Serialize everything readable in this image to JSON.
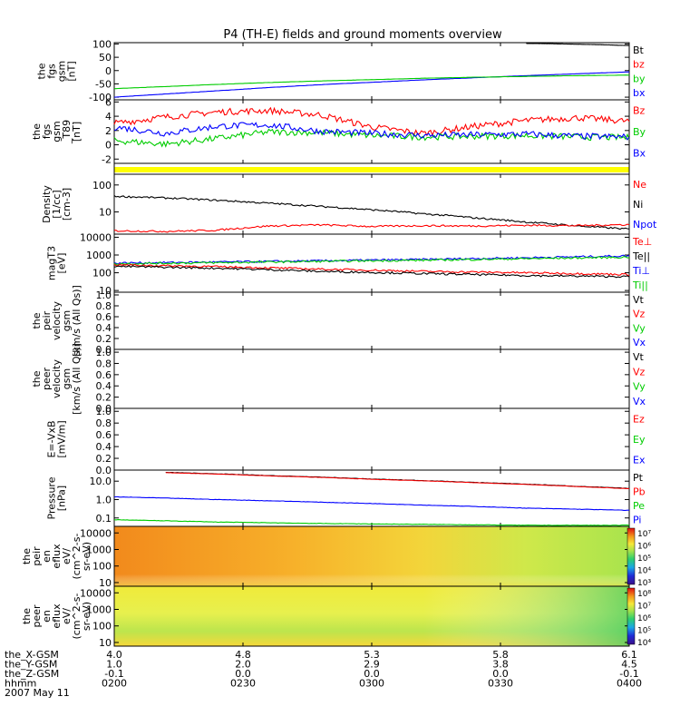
{
  "title": "P4 (TH-E) fields and ground moments overview",
  "colors": {
    "black": "#000000",
    "red": "#ff0000",
    "green": "#00cc00",
    "blue": "#0000ff",
    "yellow": "#ffff00"
  },
  "panels": [
    {
      "id": "fgs",
      "ylabel": [
        "the",
        "fgs",
        "gsm",
        "[nT]"
      ],
      "ticks": [
        "100",
        "50",
        "0",
        "-50",
        "-100"
      ],
      "legend": [
        {
          "t": "Bt",
          "c": "black"
        },
        {
          "t": "bz",
          "c": "red"
        },
        {
          "t": "by",
          "c": "green"
        },
        {
          "t": "bx",
          "c": "blue"
        }
      ]
    },
    {
      "id": "fgs2",
      "ylabel": [
        "the",
        "fgs",
        "gsm",
        "_T89",
        "[nT]"
      ],
      "ticks": [
        "6",
        "4",
        "2",
        "0",
        "-2"
      ],
      "legend": [
        {
          "t": "Bz",
          "c": "red"
        },
        {
          "t": "By",
          "c": "green"
        },
        {
          "t": "Bx",
          "c": "blue"
        }
      ]
    },
    {
      "id": "bar",
      "ylabel": [],
      "ticks": [],
      "legend": []
    },
    {
      "id": "dens",
      "ylabel": [
        "Density",
        "[1/cc]",
        "[cm-3]"
      ],
      "ticks": [
        "100",
        "10"
      ],
      "legend": [
        {
          "t": "Ne",
          "c": "red"
        },
        {
          "t": "Ni",
          "c": "black"
        },
        {
          "t": "Npot",
          "c": "blue"
        }
      ]
    },
    {
      "id": "temp",
      "ylabel": [
        "magT3",
        "[eV]"
      ],
      "ticks": [
        "10000",
        "1000",
        "100",
        "10"
      ],
      "legend": [
        {
          "t": "Te⊥",
          "c": "red"
        },
        {
          "t": "Te||",
          "c": "black"
        },
        {
          "t": "Ti⊥",
          "c": "blue"
        },
        {
          "t": "Ti||",
          "c": "green"
        }
      ]
    },
    {
      "id": "peir",
      "ylabel": [
        "the",
        "peir",
        "velocity",
        "gsm",
        "[km/s (All Qs)]"
      ],
      "ticks": [
        "1.0",
        "0.8",
        "0.6",
        "0.4",
        "0.2",
        "0.0"
      ],
      "legend": [
        {
          "t": "Vt",
          "c": "black"
        },
        {
          "t": "Vz",
          "c": "red"
        },
        {
          "t": "Vy",
          "c": "green"
        },
        {
          "t": "Vx",
          "c": "blue"
        }
      ]
    },
    {
      "id": "peer",
      "ylabel": [
        "the",
        "peer",
        "velocity",
        "gsm",
        "[km/s (All Qs)]"
      ],
      "ticks": [
        "1.0",
        "0.8",
        "0.6",
        "0.4",
        "0.2",
        "0.0"
      ],
      "legend": [
        {
          "t": "Vt",
          "c": "black"
        },
        {
          "t": "Vz",
          "c": "red"
        },
        {
          "t": "Vy",
          "c": "green"
        },
        {
          "t": "Vx",
          "c": "blue"
        }
      ]
    },
    {
      "id": "efield",
      "ylabel": [
        "E=-VxB",
        "[mV/m]"
      ],
      "ticks": [
        "1.0",
        "0.8",
        "0.6",
        "0.4",
        "0.2",
        "0.0"
      ],
      "legend": [
        {
          "t": "Ez",
          "c": "red"
        },
        {
          "t": "Ey",
          "c": "green"
        },
        {
          "t": "Ex",
          "c": "blue"
        }
      ]
    },
    {
      "id": "press",
      "ylabel": [
        "Pressure",
        "[nPa]"
      ],
      "ticks": [
        "10.0",
        "1.0",
        "0.1"
      ],
      "legend": [
        {
          "t": "Pt",
          "c": "black"
        },
        {
          "t": "Pb",
          "c": "red"
        },
        {
          "t": "Pe",
          "c": "green"
        },
        {
          "t": "Pi",
          "c": "blue"
        }
      ]
    },
    {
      "id": "ionspec",
      "ylabel": [
        "the",
        "peir",
        "en",
        "eflux",
        "eV/",
        "(cm^2-s-",
        "sr-eV)"
      ],
      "ticks": [
        "10000",
        "1000",
        "100",
        "10"
      ],
      "colorbar": [
        "10⁷",
        "10⁶",
        "10⁵",
        "10⁴",
        "10³"
      ],
      "legend": []
    },
    {
      "id": "elecspec",
      "ylabel": [
        "the",
        "peer",
        "en",
        "eflux",
        "eV/",
        "(cm^2-s-",
        "sr-eV)"
      ],
      "ticks": [
        "10000",
        "1000",
        "100",
        "10"
      ],
      "colorbar": [
        "10⁸",
        "10⁷",
        "10⁶",
        "10⁵",
        "10⁴"
      ],
      "legend": []
    }
  ],
  "footer": {
    "rows": [
      {
        "label": "the_X-GSM",
        "values": [
          "4.0",
          "4.8",
          "5.3",
          "5.8",
          "6.1"
        ]
      },
      {
        "label": "the_Y-GSM",
        "values": [
          "1.0",
          "2.0",
          "2.9",
          "3.8",
          "4.5"
        ]
      },
      {
        "label": "the_Z-GSM",
        "values": [
          "-0.1",
          "0.0",
          "0.0",
          "0.0",
          "-0.1"
        ]
      },
      {
        "label": "hhmm",
        "values": [
          "0200",
          "0230",
          "0300",
          "0330",
          "0400"
        ]
      }
    ],
    "date": "2007 May 11"
  },
  "chart_data": {
    "type": "line",
    "title": "P4 (TH-E) fields and ground moments overview",
    "x_ticks": [
      "0200",
      "0230",
      "0300",
      "0330",
      "0400"
    ],
    "series": [
      {
        "panel": "fgs",
        "name": "Bt",
        "x": [
          0.8,
          0.85,
          0.9,
          0.95,
          1.0
        ],
        "values": [
          102,
          101,
          99,
          97,
          94
        ]
      },
      {
        "panel": "fgs",
        "name": "bx",
        "x": [
          0,
          0.1,
          0.2,
          0.3,
          0.4,
          0.5,
          0.6,
          0.7,
          0.8,
          0.9,
          1.0
        ],
        "values": [
          -100,
          -88,
          -76,
          -64,
          -53,
          -44,
          -35,
          -27,
          -19,
          -12,
          -5
        ]
      },
      {
        "panel": "fgs",
        "name": "by",
        "x": [
          0,
          0.1,
          0.2,
          0.3,
          0.4,
          0.5,
          0.6,
          0.7,
          0.8,
          0.9,
          1.0
        ],
        "values": [
          -68,
          -60,
          -52,
          -45,
          -39,
          -34,
          -29,
          -25,
          -22,
          -19,
          -17
        ]
      },
      {
        "panel": "fgs2",
        "name": "Bz",
        "x": [
          0,
          0.1,
          0.2,
          0.3,
          0.4,
          0.5,
          0.6,
          0.7,
          0.8,
          0.9,
          1.0
        ],
        "values": [
          3,
          3.9,
          4.6,
          4.8,
          4.2,
          2.5,
          1.6,
          2.6,
          3.4,
          3.8,
          3.3
        ]
      },
      {
        "panel": "fgs2",
        "name": "By",
        "x": [
          0,
          0.1,
          0.2,
          0.3,
          0.4,
          0.5,
          0.6,
          0.7,
          0.8,
          0.9,
          1.0
        ],
        "values": [
          0.6,
          0.1,
          0.9,
          1.8,
          1.7,
          1.3,
          1.1,
          1.2,
          1.3,
          1.1,
          1.0
        ]
      },
      {
        "panel": "fgs2",
        "name": "Bx",
        "x": [
          0,
          0.1,
          0.2,
          0.3,
          0.4,
          0.5,
          0.6,
          0.7,
          0.8,
          0.9,
          1.0
        ],
        "values": [
          2.5,
          1.6,
          2.6,
          2.8,
          1.9,
          1.6,
          1.3,
          1.4,
          1.5,
          1.2,
          1.1
        ]
      },
      {
        "panel": "dens",
        "name": "Ni",
        "x": [
          0,
          0.1,
          0.2,
          0.3,
          0.4,
          0.5,
          0.6,
          0.7,
          0.8,
          0.9,
          1.0
        ],
        "values": [
          38,
          33,
          27,
          21,
          16,
          12,
          8.5,
          6,
          4.2,
          3,
          2.3
        ]
      },
      {
        "panel": "dens",
        "name": "Ne",
        "x": [
          0,
          0.1,
          0.2,
          0.3,
          0.4,
          0.5,
          0.6,
          0.7,
          0.8,
          0.9,
          1.0
        ],
        "values": [
          2.0,
          1.9,
          2.1,
          3.0,
          3.3,
          2.9,
          3.1,
          3.0,
          3.2,
          3.1,
          3.4
        ]
      },
      {
        "panel": "temp",
        "name": "Ti⊥",
        "x": [
          0,
          0.2,
          0.4,
          0.6,
          0.8,
          1.0
        ],
        "values": [
          350,
          400,
          470,
          560,
          700,
          900
        ]
      },
      {
        "panel": "temp",
        "name": "Ti||",
        "x": [
          0,
          0.2,
          0.4,
          0.6,
          0.8,
          1.0
        ],
        "values": [
          320,
          370,
          440,
          510,
          620,
          760
        ]
      },
      {
        "panel": "temp",
        "name": "Te⊥",
        "x": [
          0,
          0.2,
          0.4,
          0.6,
          0.8,
          1.0
        ],
        "values": [
          280,
          220,
          160,
          120,
          100,
          80
        ]
      },
      {
        "panel": "temp",
        "name": "Te||",
        "x": [
          0,
          0.2,
          0.4,
          0.6,
          0.8,
          1.0
        ],
        "values": [
          230,
          180,
          120,
          90,
          70,
          60
        ]
      },
      {
        "panel": "press",
        "name": "Pt",
        "x": [
          0.1,
          0.3,
          0.5,
          0.7,
          0.9,
          1.0
        ],
        "values": [
          30,
          20,
          13,
          8.5,
          5.2,
          4.0
        ]
      },
      {
        "panel": "press",
        "name": "Pi",
        "x": [
          0,
          0.2,
          0.4,
          0.6,
          0.8,
          1.0
        ],
        "values": [
          1.4,
          1.0,
          0.72,
          0.5,
          0.34,
          0.26
        ]
      },
      {
        "panel": "press",
        "name": "Pe",
        "x": [
          0,
          0.2,
          0.4,
          0.6,
          0.8,
          1.0
        ],
        "values": [
          0.08,
          0.06,
          0.05,
          0.045,
          0.04,
          0.04
        ]
      }
    ]
  }
}
